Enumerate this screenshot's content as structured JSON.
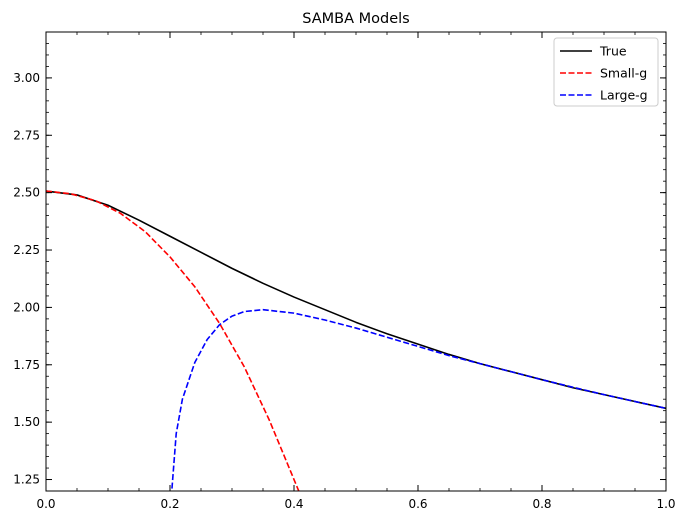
{
  "chart_data": {
    "type": "line",
    "title": "SAMBA Models",
    "xlabel": "",
    "ylabel": "",
    "xlim": [
      0.0,
      1.0
    ],
    "ylim": [
      1.2,
      3.2
    ],
    "x_ticks": [
      "0.0",
      "0.2",
      "0.4",
      "0.6",
      "0.8",
      "1.0"
    ],
    "y_ticks": [
      "1.25",
      "1.50",
      "1.75",
      "2.00",
      "2.25",
      "2.50",
      "2.75",
      "3.00"
    ],
    "grid": false,
    "legend_position": "top-right",
    "series": [
      {
        "name": "True",
        "color": "#000000",
        "style": "solid",
        "x": [
          0.0,
          0.05,
          0.1,
          0.15,
          0.2,
          0.25,
          0.3,
          0.35,
          0.4,
          0.45,
          0.5,
          0.55,
          0.6,
          0.65,
          0.7,
          0.75,
          0.8,
          0.85,
          0.9,
          0.95,
          1.0
        ],
        "y": [
          2.507,
          2.49,
          2.445,
          2.38,
          2.31,
          2.24,
          2.17,
          2.105,
          2.045,
          1.99,
          1.935,
          1.885,
          1.84,
          1.795,
          1.755,
          1.72,
          1.685,
          1.65,
          1.62,
          1.59,
          1.56
        ]
      },
      {
        "name": "Small-g",
        "color": "#ff0000",
        "style": "dashed",
        "x": [
          0.0,
          0.04,
          0.08,
          0.12,
          0.16,
          0.2,
          0.24,
          0.28,
          0.32,
          0.36,
          0.4,
          0.42
        ],
        "y": [
          2.507,
          2.495,
          2.465,
          2.41,
          2.33,
          2.22,
          2.09,
          1.93,
          1.74,
          1.51,
          1.25,
          1.12
        ]
      },
      {
        "name": "Large-g",
        "color": "#0000ff",
        "style": "dashed",
        "x": [
          0.2,
          0.21,
          0.22,
          0.24,
          0.26,
          0.28,
          0.3,
          0.32,
          0.35,
          0.4,
          0.45,
          0.5,
          0.55,
          0.6,
          0.65,
          0.7,
          0.75,
          0.8,
          0.85,
          0.9,
          0.95,
          1.0
        ],
        "y": [
          1.1,
          1.45,
          1.6,
          1.76,
          1.86,
          1.925,
          1.962,
          1.982,
          1.99,
          1.975,
          1.945,
          1.91,
          1.87,
          1.83,
          1.79,
          1.755,
          1.72,
          1.685,
          1.652,
          1.62,
          1.59,
          1.56
        ]
      }
    ]
  }
}
